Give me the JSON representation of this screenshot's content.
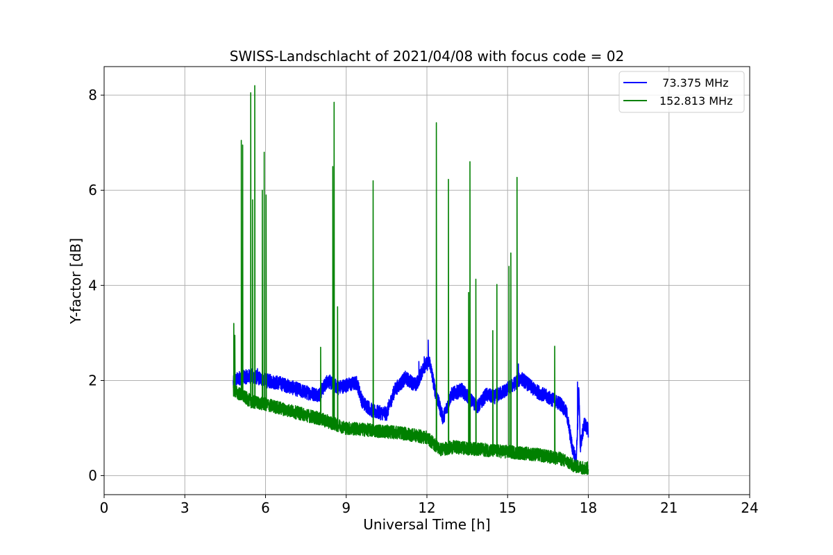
{
  "chart_data": {
    "type": "line",
    "title": "SWISS-Landschlacht of 2021/04/08 with focus code = 02",
    "xlabel": "Universal Time [h]",
    "ylabel": "Y-factor [dB]",
    "xlim": [
      0,
      24
    ],
    "ylim": [
      -0.4,
      8.6
    ],
    "xticks": [
      0,
      3,
      6,
      9,
      12,
      15,
      18,
      21,
      24
    ],
    "yticks": [
      0,
      2,
      4,
      6,
      8
    ],
    "grid": true,
    "legend_position": "top-right",
    "series": [
      {
        "name": "  73.375 MHz",
        "color": "#0000ff",
        "baseline": [
          [
            4.8,
            1.95
          ],
          [
            5.0,
            2.05
          ],
          [
            5.5,
            2.1
          ],
          [
            6.0,
            2.0
          ],
          [
            6.5,
            1.95
          ],
          [
            7.0,
            1.85
          ],
          [
            7.5,
            1.75
          ],
          [
            8.0,
            1.7
          ],
          [
            8.3,
            2.0
          ],
          [
            8.7,
            1.85
          ],
          [
            9.0,
            1.9
          ],
          [
            9.4,
            1.95
          ],
          [
            9.6,
            1.55
          ],
          [
            10.0,
            1.35
          ],
          [
            10.5,
            1.3
          ],
          [
            10.8,
            1.8
          ],
          [
            11.2,
            2.05
          ],
          [
            11.6,
            1.9
          ],
          [
            11.9,
            2.3
          ],
          [
            12.1,
            2.4
          ],
          [
            12.3,
            1.8
          ],
          [
            12.6,
            1.2
          ],
          [
            12.9,
            1.7
          ],
          [
            13.3,
            1.8
          ],
          [
            13.6,
            1.6
          ],
          [
            13.9,
            1.45
          ],
          [
            14.2,
            1.7
          ],
          [
            14.5,
            1.65
          ],
          [
            14.8,
            1.75
          ],
          [
            15.2,
            1.9
          ],
          [
            15.5,
            2.05
          ],
          [
            16.0,
            1.8
          ],
          [
            16.5,
            1.65
          ],
          [
            17.0,
            1.5
          ],
          [
            17.2,
            1.3
          ],
          [
            17.4,
            0.6
          ],
          [
            17.55,
            0.3
          ],
          [
            17.65,
            1.8
          ],
          [
            17.7,
            0.6
          ],
          [
            17.85,
            1.1
          ],
          [
            18.0,
            0.95
          ]
        ],
        "noise": 0.15,
        "spikes": [
          [
            12.05,
            2.85
          ],
          [
            11.9,
            2.5
          ],
          [
            11.7,
            2.4
          ],
          [
            15.4,
            2.35
          ],
          [
            17.6,
            1.97
          ],
          [
            5.7,
            2.25
          ]
        ]
      },
      {
        "name": "152.813 MHz",
        "color": "#008000",
        "baseline": [
          [
            4.8,
            1.8
          ],
          [
            5.5,
            1.55
          ],
          [
            6.0,
            1.5
          ],
          [
            7.0,
            1.35
          ],
          [
            8.0,
            1.2
          ],
          [
            9.0,
            1.0
          ],
          [
            10.0,
            0.95
          ],
          [
            11.0,
            0.9
          ],
          [
            12.0,
            0.8
          ],
          [
            12.5,
            0.55
          ],
          [
            13.0,
            0.6
          ],
          [
            14.0,
            0.55
          ],
          [
            15.0,
            0.5
          ],
          [
            16.0,
            0.45
          ],
          [
            17.0,
            0.35
          ],
          [
            17.5,
            0.2
          ],
          [
            18.0,
            0.15
          ]
        ],
        "noise": 0.14,
        "spikes": [
          [
            4.82,
            3.2
          ],
          [
            4.86,
            2.95
          ],
          [
            5.1,
            7.05
          ],
          [
            5.15,
            6.95
          ],
          [
            5.45,
            8.05
          ],
          [
            5.6,
            8.2
          ],
          [
            5.52,
            5.8
          ],
          [
            5.88,
            6.0
          ],
          [
            5.95,
            6.8
          ],
          [
            6.02,
            5.9
          ],
          [
            8.05,
            2.7
          ],
          [
            8.5,
            6.5
          ],
          [
            8.55,
            7.85
          ],
          [
            8.68,
            3.55
          ],
          [
            10.0,
            6.2
          ],
          [
            12.35,
            7.42
          ],
          [
            12.8,
            6.23
          ],
          [
            13.6,
            6.6
          ],
          [
            13.55,
            3.85
          ],
          [
            13.82,
            4.13
          ],
          [
            14.45,
            3.05
          ],
          [
            14.6,
            4.02
          ],
          [
            15.05,
            4.4
          ],
          [
            15.12,
            4.68
          ],
          [
            15.35,
            6.27
          ],
          [
            16.75,
            2.72
          ]
        ]
      }
    ]
  }
}
